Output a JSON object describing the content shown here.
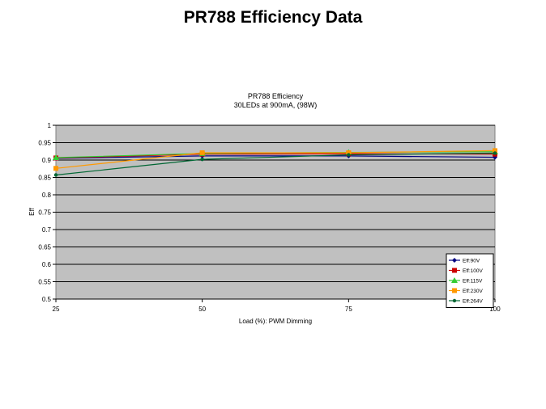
{
  "slide": {
    "title": "PR788 Efficiency Data"
  },
  "chart_data": {
    "type": "line",
    "title": "PR788 Efficiency",
    "subtitle": "30LEDs at 900mA, (98W)",
    "xlabel": "Load (%): PWM Dimming",
    "ylabel": "Eff",
    "x": [
      25,
      50,
      75,
      100
    ],
    "x_ticks": [
      "25",
      "50",
      "75",
      "100"
    ],
    "y_ticks": [
      "0.5",
      "0.55",
      "0.6",
      "0.65",
      "0.7",
      "0.75",
      "0.8",
      "0.85",
      "0.9",
      "0.95",
      "1"
    ],
    "ylim": [
      0.5,
      1.0
    ],
    "grid": "horizontal",
    "plot_background": "#c0c0c0",
    "legend_position": "bottom-right",
    "series": [
      {
        "name": "Eff:90V",
        "color": "#000080",
        "marker": "diamond",
        "values": [
          0.905,
          0.912,
          0.912,
          0.908
        ]
      },
      {
        "name": "Eff:100V",
        "color": "#cc0000",
        "marker": "square",
        "values": [
          0.906,
          0.917,
          0.918,
          0.917
        ]
      },
      {
        "name": "Eff:115V",
        "color": "#33cc33",
        "marker": "triangle",
        "values": [
          0.907,
          0.919,
          0.922,
          0.924
        ]
      },
      {
        "name": "Eff:230V",
        "color": "#ff9900",
        "marker": "square",
        "values": [
          0.876,
          0.921,
          0.921,
          0.927
        ]
      },
      {
        "name": "Eff:264V",
        "color": "#006633",
        "marker": "circle",
        "values": [
          0.857,
          0.902,
          0.915,
          0.92
        ]
      }
    ]
  }
}
